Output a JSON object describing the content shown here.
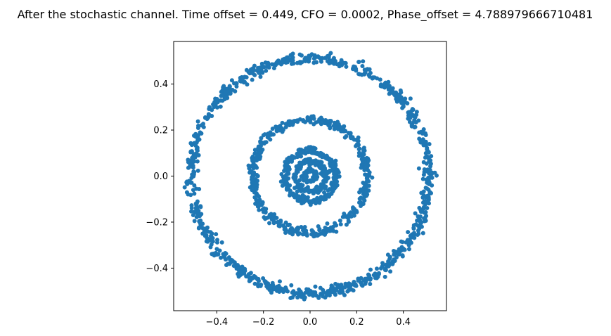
{
  "chart_data": {
    "type": "scatter",
    "title": "After the stochastic channel. Time offset = 0.449, CFO = 0.0002, Phase_offset = 4.788979666710481",
    "xlabel": "",
    "ylabel": "",
    "xlim": [
      -0.585,
      0.585
    ],
    "ylim": [
      -0.585,
      0.585
    ],
    "grid": false,
    "marker_color": "#1f77b4",
    "x_ticks": [
      {
        "value": -0.4,
        "label": "−0.4"
      },
      {
        "value": -0.2,
        "label": "−0.2"
      },
      {
        "value": 0.0,
        "label": "0.0"
      },
      {
        "value": 0.2,
        "label": "0.2"
      },
      {
        "value": 0.4,
        "label": "0.4"
      }
    ],
    "y_ticks": [
      {
        "value": 0.4,
        "label": "0.4"
      },
      {
        "value": 0.2,
        "label": "0.2"
      },
      {
        "value": 0.0,
        "label": "0.0"
      },
      {
        "value": -0.2,
        "label": "−0.2"
      },
      {
        "value": -0.4,
        "label": "−0.4"
      }
    ],
    "rings": [
      {
        "radius": 0.51,
        "spread": 0.012,
        "count": 900
      },
      {
        "radius": 0.245,
        "spread": 0.01,
        "count": 450
      },
      {
        "radius": 0.11,
        "spread": 0.008,
        "count": 260
      },
      {
        "radius": 0.065,
        "spread": 0.007,
        "count": 180
      },
      {
        "radius": 0.025,
        "spread": 0.005,
        "count": 80
      }
    ]
  }
}
